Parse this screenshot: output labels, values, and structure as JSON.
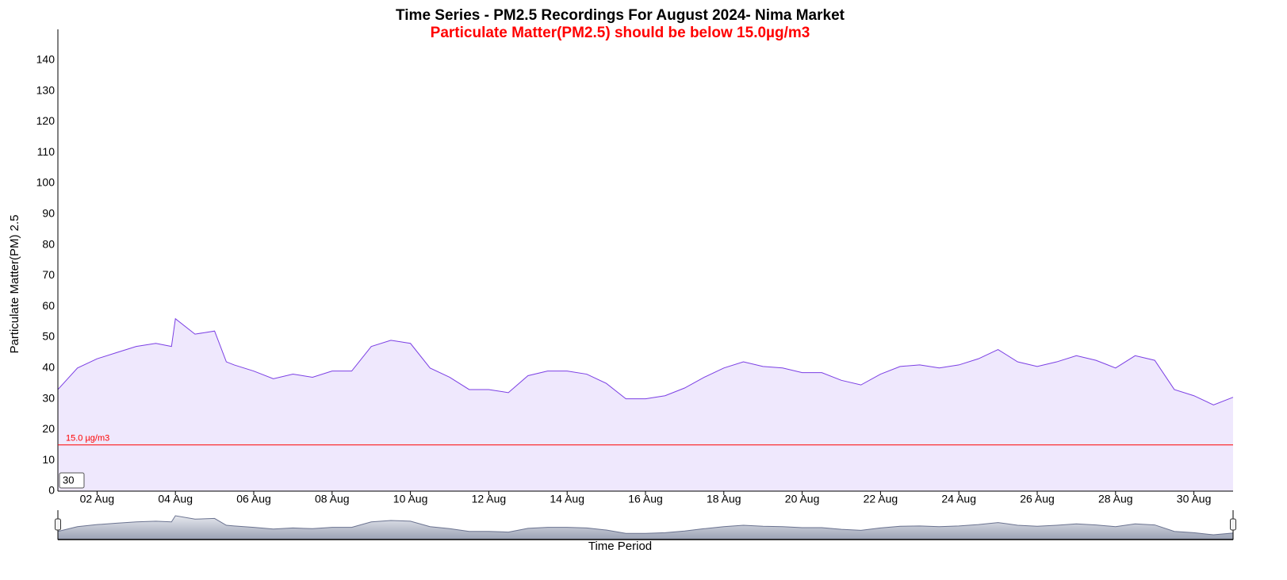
{
  "chart_data": {
    "type": "area",
    "title": "Time Series - PM2.5 Recordings For August 2024- Nima Market",
    "subtitle": "Particulate Matter(PM2.5) should be below 15.0µg/m3",
    "y_label": "Particulate Matter(PM) 2.5",
    "x_label": "Time Period",
    "color": "#7b3fe4",
    "fill": "#efe8fd",
    "x": [
      1.0,
      1.5,
      2.0,
      2.5,
      3.0,
      3.5,
      3.9,
      4.0,
      4.5,
      5.0,
      5.3,
      5.5,
      6.0,
      6.5,
      7.0,
      7.5,
      8.0,
      8.5,
      9.0,
      9.5,
      10.0,
      10.5,
      11.0,
      11.5,
      12.0,
      12.5,
      13.0,
      13.5,
      14.0,
      14.5,
      15.0,
      15.5,
      16.0,
      16.5,
      17.0,
      17.5,
      18.0,
      18.5,
      19.0,
      19.5,
      20.0,
      20.5,
      21.0,
      21.5,
      22.0,
      22.5,
      23.0,
      23.5,
      24.0,
      24.5,
      25.0,
      25.5,
      26.0,
      26.5,
      27.0,
      27.5,
      28.0,
      28.5,
      29.0,
      29.5,
      30.0,
      30.5,
      31.0
    ],
    "values": [
      33,
      40,
      43,
      45,
      47,
      48,
      47,
      56,
      51,
      52,
      42,
      41,
      39,
      36.5,
      38,
      37,
      39,
      39,
      47,
      49,
      48,
      40,
      37,
      33,
      33,
      32,
      37.5,
      39,
      39,
      38,
      35,
      30,
      30,
      31,
      33.5,
      37,
      40,
      42,
      40.5,
      40,
      38.5,
      38.5,
      36,
      34.5,
      38,
      40.5,
      41,
      40,
      41,
      43,
      46,
      42,
      40.5,
      42,
      44,
      42.5,
      40,
      44,
      42.5,
      33,
      31,
      28,
      30.5
    ],
    "xlim": [
      1,
      31
    ],
    "xticks": [
      {
        "value": 2,
        "label": "02 Aug"
      },
      {
        "value": 4,
        "label": "04 Aug"
      },
      {
        "value": 6,
        "label": "06 Aug"
      },
      {
        "value": 8,
        "label": "08 Aug"
      },
      {
        "value": 10,
        "label": "10 Aug"
      },
      {
        "value": 12,
        "label": "12 Aug"
      },
      {
        "value": 14,
        "label": "14 Aug"
      },
      {
        "value": 16,
        "label": "16 Aug"
      },
      {
        "value": 18,
        "label": "18 Aug"
      },
      {
        "value": 20,
        "label": "20 Aug"
      },
      {
        "value": 22,
        "label": "22 Aug"
      },
      {
        "value": 24,
        "label": "24 Aug"
      },
      {
        "value": 26,
        "label": "26 Aug"
      },
      {
        "value": 28,
        "label": "28 Aug"
      },
      {
        "value": 30,
        "label": "30 Aug"
      }
    ],
    "ylim": [
      0,
      150
    ],
    "yticks": [
      0,
      10,
      20,
      30,
      40,
      50,
      60,
      70,
      80,
      90,
      100,
      110,
      120,
      130,
      140
    ],
    "threshold": {
      "value": 15,
      "label": "15.0 µg/m3",
      "color": "#ff0000"
    },
    "rolling_input": 30
  }
}
